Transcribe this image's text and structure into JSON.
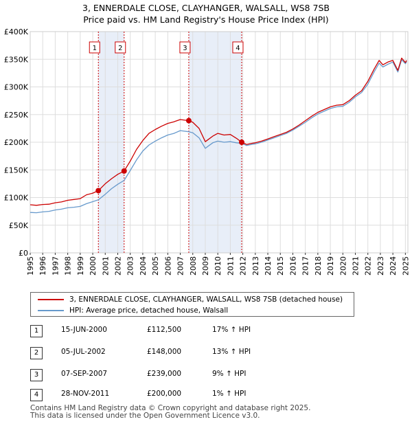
{
  "chart_data": {
    "type": "line",
    "title": "3, ENNERDALE CLOSE, CLAYHANGER, WALSALL, WS8 7SB",
    "subtitle": "Price paid vs. HM Land Registry's House Price Index (HPI)",
    "xlim": [
      1995,
      2025.2
    ],
    "ylim": [
      0,
      400000
    ],
    "y_ticks": [
      {
        "value": 0,
        "label": "£0"
      },
      {
        "value": 50000,
        "label": "£50K"
      },
      {
        "value": 100000,
        "label": "£100K"
      },
      {
        "value": 150000,
        "label": "£150K"
      },
      {
        "value": 200000,
        "label": "£200K"
      },
      {
        "value": 250000,
        "label": "£250K"
      },
      {
        "value": 300000,
        "label": "£300K"
      },
      {
        "value": 350000,
        "label": "£350K"
      },
      {
        "value": 400000,
        "label": "£400K"
      }
    ],
    "x_ticks": [
      "1995",
      "1996",
      "1997",
      "1998",
      "1999",
      "2000",
      "2001",
      "2002",
      "2003",
      "2004",
      "2005",
      "2006",
      "2007",
      "2008",
      "2009",
      "2010",
      "2011",
      "2012",
      "2013",
      "2014",
      "2015",
      "2016",
      "2017",
      "2018",
      "2019",
      "2020",
      "2021",
      "2022",
      "2023",
      "2024",
      "2025"
    ],
    "grid": true,
    "colors": {
      "property": "#cc0000",
      "hpi": "#6699cc",
      "band": "#e8eef8",
      "marker_line": "#cc0000"
    },
    "series": [
      {
        "name": "3, ENNERDALE CLOSE, CLAYHANGER, WALSALL, WS8 7SB (detached house)",
        "x": [
          1995.0,
          1995.5,
          1996.0,
          1996.5,
          1997.0,
          1997.5,
          1998.0,
          1998.5,
          1999.0,
          1999.5,
          2000.0,
          2000.45,
          2001.0,
          2001.5,
          2002.0,
          2002.51,
          2003.0,
          2003.5,
          2004.0,
          2004.5,
          2005.0,
          2005.5,
          2006.0,
          2006.5,
          2007.0,
          2007.68,
          2008.0,
          2008.5,
          2009.0,
          2009.3,
          2009.6,
          2010.0,
          2010.5,
          2011.0,
          2011.5,
          2011.91,
          2012.3,
          2012.7,
          2013.0,
          2013.5,
          2014.0,
          2014.5,
          2015.0,
          2015.5,
          2016.0,
          2016.5,
          2017.0,
          2017.5,
          2018.0,
          2018.5,
          2019.0,
          2019.5,
          2020.0,
          2020.5,
          2021.0,
          2021.5,
          2022.0,
          2022.5,
          2022.9,
          2023.2,
          2023.6,
          2024.0,
          2024.4,
          2024.7,
          2025.0,
          2025.1
        ],
        "values": [
          87000,
          86000,
          87500,
          88000,
          90500,
          92000,
          95000,
          96500,
          98000,
          105000,
          108000,
          112500,
          125000,
          134000,
          142000,
          148000,
          166000,
          187000,
          203000,
          216000,
          223000,
          229000,
          234000,
          237000,
          241000,
          239000,
          236000,
          225000,
          201000,
          206000,
          211000,
          216000,
          213000,
          214000,
          207000,
          200000,
          196000,
          198000,
          199000,
          202000,
          206000,
          210000,
          214000,
          218000,
          224000,
          231000,
          239000,
          247000,
          254000,
          259000,
          264000,
          267000,
          268000,
          275000,
          285000,
          293000,
          310000,
          332000,
          348000,
          340000,
          345000,
          348000,
          330000,
          352000,
          344000,
          348000
        ]
      },
      {
        "name": "HPI: Average price, detached house, Walsall",
        "x": [
          1995.0,
          1995.5,
          1996.0,
          1996.5,
          1997.0,
          1997.5,
          1998.0,
          1998.5,
          1999.0,
          1999.5,
          2000.0,
          2000.45,
          2001.0,
          2001.5,
          2002.0,
          2002.51,
          2003.0,
          2003.5,
          2004.0,
          2004.5,
          2005.0,
          2005.5,
          2006.0,
          2006.5,
          2007.0,
          2007.68,
          2008.0,
          2008.5,
          2009.0,
          2009.3,
          2009.6,
          2010.0,
          2010.5,
          2011.0,
          2011.5,
          2011.91,
          2012.3,
          2012.7,
          2013.0,
          2013.5,
          2014.0,
          2014.5,
          2015.0,
          2015.5,
          2016.0,
          2016.5,
          2017.0,
          2017.5,
          2018.0,
          2018.5,
          2019.0,
          2019.5,
          2020.0,
          2020.5,
          2021.0,
          2021.5,
          2022.0,
          2022.5,
          2022.9,
          2023.2,
          2023.6,
          2024.0,
          2024.4,
          2024.7,
          2025.0,
          2025.1
        ],
        "values": [
          73000,
          72500,
          74000,
          75000,
          77500,
          79000,
          81500,
          82500,
          84000,
          89000,
          92500,
          96000,
          106000,
          116000,
          124000,
          131000,
          149000,
          168000,
          184000,
          195000,
          202000,
          208000,
          213000,
          216000,
          221000,
          219000,
          217000,
          208000,
          189000,
          194000,
          199000,
          202000,
          200000,
          201000,
          199000,
          198000,
          194000,
          196000,
          197000,
          200000,
          204000,
          208000,
          212000,
          216000,
          222000,
          229000,
          236000,
          244000,
          251000,
          256000,
          261000,
          264000,
          265000,
          272000,
          282000,
          290000,
          305000,
          327000,
          343000,
          336000,
          341000,
          345000,
          327000,
          349000,
          342000,
          346000
        ]
      }
    ],
    "sales": [
      {
        "num": "1",
        "x": 2000.45,
        "value": 112500,
        "date": "15-JUN-2000",
        "price": "£112,500",
        "hpi": "17% ↑ HPI"
      },
      {
        "num": "2",
        "x": 2002.51,
        "value": 148000,
        "date": "05-JUL-2002",
        "price": "£148,000",
        "hpi": "13% ↑ HPI"
      },
      {
        "num": "3",
        "x": 2007.68,
        "value": 239000,
        "date": "07-SEP-2007",
        "price": "£239,000",
        "hpi": "9% ↑ HPI"
      },
      {
        "num": "4",
        "x": 2011.91,
        "value": 200000,
        "date": "28-NOV-2011",
        "price": "£200,000",
        "hpi": "1% ↑ HPI"
      }
    ],
    "legend": [
      "3, ENNERDALE CLOSE, CLAYHANGER, WALSALL, WS8 7SB (detached house)",
      "HPI: Average price, detached house, Walsall"
    ]
  },
  "footer": {
    "line1": "Contains HM Land Registry data © Crown copyright and database right 2025.",
    "line2": "This data is licensed under the Open Government Licence v3.0."
  }
}
